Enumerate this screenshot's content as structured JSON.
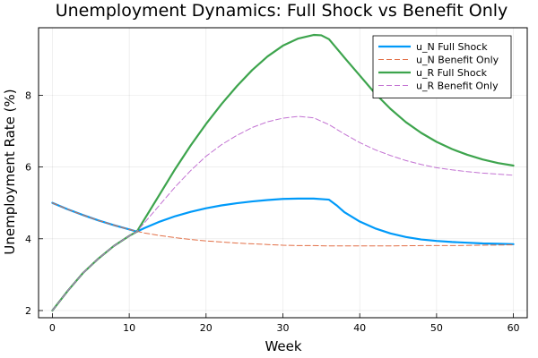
{
  "chart_data": {
    "type": "line",
    "title": "Unemployment Dynamics: Full Shock vs Benefit Only",
    "xlabel": "Week",
    "ylabel": "Unemployment Rate (%)",
    "xlim": [
      -1.8,
      61.8
    ],
    "ylim": [
      1.8,
      9.88
    ],
    "xticks": [
      0,
      10,
      20,
      30,
      40,
      50,
      60
    ],
    "yticks": [
      2,
      4,
      6,
      8
    ],
    "grid": true,
    "legend_position": "top-right",
    "series": [
      {
        "name": "u_N Full Shock",
        "color": "#009af9",
        "style": "solid",
        "points": [
          [
            0,
            5.0
          ],
          [
            2,
            4.82
          ],
          [
            4,
            4.66
          ],
          [
            6,
            4.51
          ],
          [
            8,
            4.38
          ],
          [
            10,
            4.26
          ],
          [
            11,
            4.2
          ],
          [
            12,
            4.3
          ],
          [
            14,
            4.48
          ],
          [
            16,
            4.63
          ],
          [
            18,
            4.75
          ],
          [
            20,
            4.85
          ],
          [
            22,
            4.93
          ],
          [
            24,
            4.99
          ],
          [
            26,
            5.04
          ],
          [
            28,
            5.08
          ],
          [
            30,
            5.11
          ],
          [
            32,
            5.12
          ],
          [
            34,
            5.12
          ],
          [
            36,
            5.09
          ],
          [
            37,
            4.93
          ],
          [
            38,
            4.74
          ],
          [
            40,
            4.48
          ],
          [
            42,
            4.29
          ],
          [
            44,
            4.15
          ],
          [
            46,
            4.05
          ],
          [
            48,
            3.98
          ],
          [
            50,
            3.94
          ],
          [
            52,
            3.91
          ],
          [
            54,
            3.89
          ],
          [
            56,
            3.87
          ],
          [
            58,
            3.86
          ],
          [
            60,
            3.85
          ]
        ]
      },
      {
        "name": "u_N Benefit Only",
        "color": "#e26f46",
        "style": "dashed",
        "points": [
          [
            0,
            5.0
          ],
          [
            2,
            4.82
          ],
          [
            4,
            4.66
          ],
          [
            6,
            4.51
          ],
          [
            8,
            4.38
          ],
          [
            10,
            4.26
          ],
          [
            12,
            4.16
          ],
          [
            14,
            4.09
          ],
          [
            16,
            4.03
          ],
          [
            18,
            3.98
          ],
          [
            20,
            3.94
          ],
          [
            22,
            3.91
          ],
          [
            24,
            3.88
          ],
          [
            26,
            3.86
          ],
          [
            28,
            3.84
          ],
          [
            30,
            3.82
          ],
          [
            32,
            3.81
          ],
          [
            34,
            3.81
          ],
          [
            36,
            3.8
          ],
          [
            40,
            3.8
          ],
          [
            44,
            3.8
          ],
          [
            48,
            3.81
          ],
          [
            52,
            3.81
          ],
          [
            56,
            3.82
          ],
          [
            60,
            3.83
          ]
        ]
      },
      {
        "name": "u_R Full Shock",
        "color": "#3da44d",
        "style": "solid",
        "points": [
          [
            0,
            2.0
          ],
          [
            2,
            2.55
          ],
          [
            4,
            3.05
          ],
          [
            6,
            3.45
          ],
          [
            8,
            3.8
          ],
          [
            10,
            4.08
          ],
          [
            11,
            4.2
          ],
          [
            12,
            4.55
          ],
          [
            14,
            5.25
          ],
          [
            16,
            5.95
          ],
          [
            18,
            6.6
          ],
          [
            20,
            7.2
          ],
          [
            22,
            7.75
          ],
          [
            24,
            8.25
          ],
          [
            26,
            8.7
          ],
          [
            28,
            9.08
          ],
          [
            30,
            9.38
          ],
          [
            32,
            9.58
          ],
          [
            34,
            9.68
          ],
          [
            35,
            9.67
          ],
          [
            36,
            9.56
          ],
          [
            38,
            9.05
          ],
          [
            40,
            8.55
          ],
          [
            42,
            8.05
          ],
          [
            44,
            7.62
          ],
          [
            46,
            7.25
          ],
          [
            48,
            6.95
          ],
          [
            50,
            6.7
          ],
          [
            52,
            6.5
          ],
          [
            54,
            6.34
          ],
          [
            56,
            6.21
          ],
          [
            58,
            6.11
          ],
          [
            60,
            6.04
          ]
        ]
      },
      {
        "name": "u_R Benefit Only",
        "color": "#c271d2",
        "style": "dashed",
        "points": [
          [
            0,
            2.0
          ],
          [
            2,
            2.55
          ],
          [
            4,
            3.05
          ],
          [
            6,
            3.45
          ],
          [
            8,
            3.8
          ],
          [
            10,
            4.08
          ],
          [
            11,
            4.2
          ],
          [
            12,
            4.45
          ],
          [
            14,
            4.95
          ],
          [
            16,
            5.45
          ],
          [
            18,
            5.9
          ],
          [
            20,
            6.3
          ],
          [
            22,
            6.62
          ],
          [
            24,
            6.88
          ],
          [
            26,
            7.1
          ],
          [
            28,
            7.26
          ],
          [
            30,
            7.36
          ],
          [
            32,
            7.41
          ],
          [
            34,
            7.37
          ],
          [
            36,
            7.18
          ],
          [
            38,
            6.92
          ],
          [
            40,
            6.68
          ],
          [
            42,
            6.48
          ],
          [
            44,
            6.32
          ],
          [
            46,
            6.18
          ],
          [
            48,
            6.07
          ],
          [
            50,
            5.98
          ],
          [
            52,
            5.92
          ],
          [
            54,
            5.87
          ],
          [
            56,
            5.83
          ],
          [
            58,
            5.8
          ],
          [
            60,
            5.77
          ]
        ]
      }
    ]
  }
}
